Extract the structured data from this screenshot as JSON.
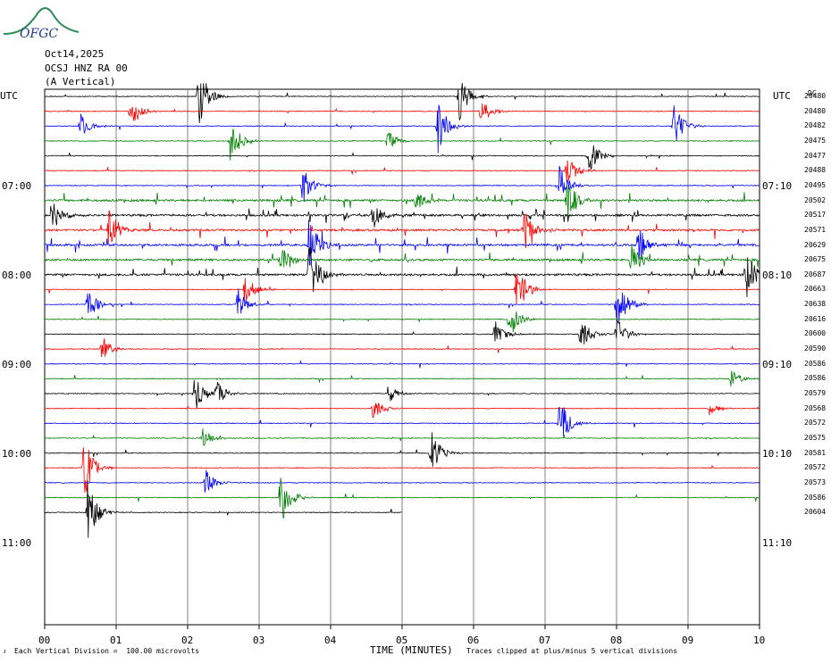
{
  "header": {
    "logo_text": "OFGC",
    "date": "Oct14,2025",
    "station": "OCSJ HNZ RA 00",
    "component": "(A Vertical)"
  },
  "left_label": "UTC",
  "right_label": "UTC",
  "dc_header": "DC",
  "left_time_labels": [
    "07:00",
    "08:00",
    "09:00",
    "10:00",
    "11:00"
  ],
  "right_time_labels": [
    "07:10",
    "08:10",
    "09:10",
    "10:10",
    "11:10"
  ],
  "dc_values": [
    "20480",
    "20480",
    "20482",
    "20475",
    "20477",
    "20488",
    "20495",
    "20502",
    "20517",
    "20571",
    "20629",
    "20675",
    "20687",
    "20663",
    "20638",
    "20616",
    "20600",
    "20590",
    "20586",
    "20586",
    "20579",
    "20568",
    "20572",
    "20575",
    "20581",
    "20572",
    "20573",
    "20586",
    "20604"
  ],
  "footer": {
    "left": "Each Vertical Division =  100.00 microvolts",
    "xlabel": "TIME (MINUTES)",
    "right": "Traces clipped at plus/minus 5 vertical divisions"
  },
  "colors": {
    "trace_cycle": [
      "#000000",
      "#ff0000",
      "#0000ff",
      "#008000"
    ],
    "grid": "#808080",
    "logo": "#2e8b57"
  },
  "chart_data": {
    "type": "line",
    "title": "OCSJ HNZ RA 00 (A Vertical) Oct14,2025",
    "xlabel": "TIME (MINUTES)",
    "x_ticks": [
      "00",
      "01",
      "02",
      "03",
      "04",
      "05",
      "06",
      "07",
      "08",
      "09",
      "10"
    ],
    "xlim": [
      0,
      10
    ],
    "y_axis": "UTC start time of each 10-minute trace",
    "line_count": 29,
    "line_duration_minutes": 10,
    "last_line_end_minute": 5,
    "vertical_division_microvolts": 100,
    "clip_divisions": 5,
    "events": [
      {
        "line": 0,
        "minute": 2.15,
        "amp": 1.0
      },
      {
        "line": 0,
        "minute": 5.8,
        "amp": 0.7
      },
      {
        "line": 1,
        "minute": 1.2,
        "amp": 0.6
      },
      {
        "line": 1,
        "minute": 6.1,
        "amp": 0.4
      },
      {
        "line": 2,
        "minute": 0.5,
        "amp": 0.4
      },
      {
        "line": 2,
        "minute": 5.5,
        "amp": 0.8
      },
      {
        "line": 2,
        "minute": 8.8,
        "amp": 0.7
      },
      {
        "line": 3,
        "minute": 2.6,
        "amp": 0.7
      },
      {
        "line": 3,
        "minute": 4.8,
        "amp": 0.3
      },
      {
        "line": 4,
        "minute": 7.6,
        "amp": 0.6
      },
      {
        "line": 5,
        "minute": 7.3,
        "amp": 0.5
      },
      {
        "line": 6,
        "minute": 3.6,
        "amp": 0.6
      },
      {
        "line": 6,
        "minute": 7.2,
        "amp": 0.6
      },
      {
        "line": 7,
        "minute": 5.2,
        "amp": 0.4
      },
      {
        "line": 7,
        "minute": 7.3,
        "amp": 0.8
      },
      {
        "line": 8,
        "minute": 0.1,
        "amp": 0.5
      },
      {
        "line": 8,
        "minute": 4.6,
        "amp": 0.4
      },
      {
        "line": 9,
        "minute": 0.9,
        "amp": 0.7
      },
      {
        "line": 9,
        "minute": 6.7,
        "amp": 0.7
      },
      {
        "line": 10,
        "minute": 3.7,
        "amp": 0.9
      },
      {
        "line": 10,
        "minute": 8.3,
        "amp": 0.6
      },
      {
        "line": 11,
        "minute": 3.3,
        "amp": 0.5
      },
      {
        "line": 11,
        "minute": 8.2,
        "amp": 0.6
      },
      {
        "line": 12,
        "minute": 3.7,
        "amp": 1.0
      },
      {
        "line": 12,
        "minute": 9.8,
        "amp": 0.8
      },
      {
        "line": 13,
        "minute": 2.8,
        "amp": 0.5
      },
      {
        "line": 13,
        "minute": 6.6,
        "amp": 0.9
      },
      {
        "line": 14,
        "minute": 0.6,
        "amp": 0.5
      },
      {
        "line": 14,
        "minute": 2.7,
        "amp": 0.5
      },
      {
        "line": 14,
        "minute": 8.0,
        "amp": 0.9
      },
      {
        "line": 15,
        "minute": 6.5,
        "amp": 0.6
      },
      {
        "line": 16,
        "minute": 6.3,
        "amp": 0.4
      },
      {
        "line": 16,
        "minute": 7.5,
        "amp": 0.6
      },
      {
        "line": 16,
        "minute": 8.0,
        "amp": 0.5
      },
      {
        "line": 17,
        "minute": 0.8,
        "amp": 0.4
      },
      {
        "line": 19,
        "minute": 9.6,
        "amp": 0.3
      },
      {
        "line": 20,
        "minute": 2.1,
        "amp": 0.6
      },
      {
        "line": 20,
        "minute": 2.4,
        "amp": 0.4
      },
      {
        "line": 20,
        "minute": 4.8,
        "amp": 0.3
      },
      {
        "line": 21,
        "minute": 4.6,
        "amp": 0.4
      },
      {
        "line": 21,
        "minute": 9.3,
        "amp": 0.2
      },
      {
        "line": 22,
        "minute": 7.2,
        "amp": 0.8
      },
      {
        "line": 23,
        "minute": 2.2,
        "amp": 0.3
      },
      {
        "line": 24,
        "minute": 5.4,
        "amp": 0.7
      },
      {
        "line": 25,
        "minute": 0.55,
        "amp": 1.0
      },
      {
        "line": 26,
        "minute": 2.25,
        "amp": 0.4
      },
      {
        "line": 27,
        "minute": 3.3,
        "amp": 0.9
      },
      {
        "line": 28,
        "minute": 0.6,
        "amp": 1.0
      }
    ]
  }
}
